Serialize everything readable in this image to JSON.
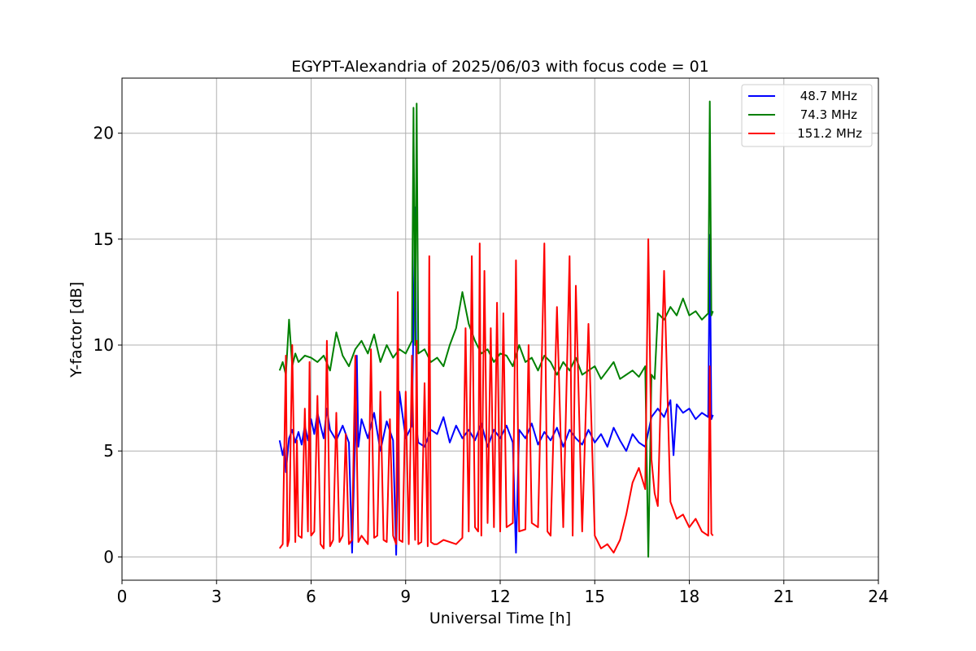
{
  "chart_data": {
    "type": "line",
    "title": "EGYPT-Alexandria of 2025/06/03 with focus code = 01",
    "xlabel": "Universal Time [h]",
    "ylabel": "Y-factor [dB]",
    "xlim": [
      0,
      24
    ],
    "ylim": [
      -1.1,
      22.6
    ],
    "xticks": [
      0,
      3,
      6,
      9,
      12,
      15,
      18,
      21,
      24
    ],
    "yticks": [
      0,
      5,
      10,
      15,
      20
    ],
    "grid": true,
    "legend_position": "top-right",
    "series": [
      {
        "name": "48.7 MHz",
        "color": "#0000ff",
        "x": [
          5.0,
          5.1,
          5.15,
          5.2,
          5.3,
          5.4,
          5.5,
          5.6,
          5.7,
          5.8,
          5.9,
          6.0,
          6.1,
          6.2,
          6.3,
          6.4,
          6.5,
          6.6,
          6.8,
          7.0,
          7.2,
          7.3,
          7.4,
          7.45,
          7.5,
          7.6,
          7.8,
          8.0,
          8.2,
          8.4,
          8.6,
          8.7,
          8.8,
          9.0,
          9.2,
          9.3,
          9.35,
          9.4,
          9.6,
          9.8,
          10.0,
          10.2,
          10.4,
          10.6,
          10.8,
          11.0,
          11.2,
          11.4,
          11.6,
          11.8,
          12.0,
          12.2,
          12.4,
          12.5,
          12.6,
          12.8,
          13.0,
          13.2,
          13.4,
          13.6,
          13.8,
          14.0,
          14.2,
          14.4,
          14.6,
          14.8,
          15.0,
          15.2,
          15.4,
          15.6,
          15.8,
          16.0,
          16.2,
          16.4,
          16.6,
          16.8,
          17.0,
          17.2,
          17.4,
          17.5,
          17.6,
          17.8,
          18.0,
          18.2,
          18.4,
          18.6,
          18.65,
          18.7,
          18.75
        ],
        "y": [
          5.5,
          4.8,
          5.2,
          4.0,
          5.6,
          6.0,
          5.4,
          5.9,
          5.3,
          6.2,
          5.5,
          6.5,
          5.8,
          6.8,
          6.2,
          5.6,
          7.0,
          6.0,
          5.5,
          6.2,
          5.4,
          0.2,
          6.0,
          9.5,
          5.2,
          6.5,
          5.6,
          6.8,
          5.0,
          6.4,
          5.5,
          0.1,
          7.8,
          5.6,
          6.2,
          16.5,
          6.0,
          5.4,
          5.2,
          6.0,
          5.8,
          6.6,
          5.4,
          6.2,
          5.6,
          6.0,
          5.5,
          6.3,
          5.2,
          6.0,
          5.6,
          6.2,
          5.4,
          0.2,
          6.0,
          5.6,
          6.3,
          5.3,
          5.9,
          5.5,
          6.1,
          5.2,
          6.0,
          5.6,
          5.3,
          6.0,
          5.4,
          5.8,
          5.2,
          6.1,
          5.5,
          5.0,
          5.8,
          5.4,
          5.2,
          6.6,
          7.0,
          6.6,
          7.4,
          4.8,
          7.2,
          6.8,
          7.0,
          6.5,
          6.8,
          6.6,
          15.2,
          6.5,
          6.7
        ]
      },
      {
        "name": "74.3 MHz",
        "color": "#008000",
        "x": [
          5.0,
          5.1,
          5.2,
          5.3,
          5.4,
          5.5,
          5.6,
          5.8,
          6.0,
          6.2,
          6.4,
          6.6,
          6.8,
          7.0,
          7.2,
          7.4,
          7.6,
          7.8,
          8.0,
          8.2,
          8.4,
          8.6,
          8.8,
          9.0,
          9.2,
          9.25,
          9.3,
          9.35,
          9.4,
          9.6,
          9.8,
          10.0,
          10.2,
          10.4,
          10.6,
          10.8,
          11.0,
          11.2,
          11.4,
          11.6,
          11.8,
          12.0,
          12.2,
          12.4,
          12.6,
          12.8,
          13.0,
          13.2,
          13.4,
          13.6,
          13.8,
          14.0,
          14.2,
          14.4,
          14.6,
          14.8,
          15.0,
          15.2,
          15.4,
          15.6,
          15.8,
          16.0,
          16.2,
          16.4,
          16.6,
          16.7,
          16.8,
          16.9,
          17.0,
          17.2,
          17.4,
          17.6,
          17.8,
          18.0,
          18.2,
          18.4,
          18.6,
          18.65,
          18.7,
          18.75
        ],
        "y": [
          8.8,
          9.2,
          8.6,
          11.2,
          9.0,
          9.6,
          9.2,
          9.5,
          9.4,
          9.2,
          9.5,
          8.8,
          10.6,
          9.5,
          9.0,
          9.8,
          10.2,
          9.6,
          10.5,
          9.2,
          10.0,
          9.4,
          9.8,
          9.6,
          10.2,
          21.2,
          10.0,
          21.4,
          9.6,
          9.8,
          9.2,
          9.4,
          9.0,
          10.0,
          10.8,
          12.5,
          11.0,
          10.2,
          9.6,
          9.8,
          9.2,
          9.6,
          9.5,
          9.0,
          10.0,
          9.2,
          9.4,
          8.8,
          9.5,
          9.2,
          8.6,
          9.2,
          8.8,
          9.4,
          8.6,
          8.8,
          9.0,
          8.4,
          8.8,
          9.2,
          8.4,
          8.6,
          8.8,
          8.5,
          9.0,
          0.0,
          8.6,
          8.4,
          11.5,
          11.2,
          11.8,
          11.4,
          12.2,
          11.4,
          11.6,
          11.2,
          11.5,
          21.5,
          11.4,
          11.6
        ]
      },
      {
        "name": "151.2 MHz",
        "color": "#ff0000",
        "x": [
          5.0,
          5.1,
          5.2,
          5.25,
          5.3,
          5.4,
          5.5,
          5.55,
          5.6,
          5.7,
          5.8,
          5.9,
          5.95,
          6.0,
          6.1,
          6.2,
          6.3,
          6.4,
          6.5,
          6.6,
          6.7,
          6.8,
          6.9,
          7.0,
          7.1,
          7.2,
          7.3,
          7.4,
          7.5,
          7.6,
          7.7,
          7.8,
          7.9,
          8.0,
          8.1,
          8.2,
          8.3,
          8.4,
          8.5,
          8.6,
          8.7,
          8.75,
          8.8,
          8.9,
          9.0,
          9.1,
          9.2,
          9.3,
          9.35,
          9.4,
          9.5,
          9.6,
          9.7,
          9.75,
          9.8,
          9.9,
          10.0,
          10.2,
          10.4,
          10.6,
          10.8,
          10.9,
          11.0,
          11.1,
          11.2,
          11.3,
          11.35,
          11.4,
          11.5,
          11.6,
          11.7,
          11.8,
          11.9,
          12.0,
          12.1,
          12.2,
          12.4,
          12.5,
          12.6,
          12.8,
          12.9,
          13.0,
          13.2,
          13.4,
          13.5,
          13.6,
          13.8,
          14.0,
          14.2,
          14.3,
          14.4,
          14.6,
          14.8,
          15.0,
          15.2,
          15.4,
          15.6,
          15.8,
          16.0,
          16.2,
          16.4,
          16.6,
          16.7,
          16.8,
          16.9,
          17.0,
          17.2,
          17.4,
          17.6,
          17.8,
          18.0,
          18.2,
          18.4,
          18.6,
          18.65,
          18.7,
          18.75
        ],
        "y": [
          0.4,
          0.6,
          9.5,
          0.5,
          0.8,
          10.0,
          0.7,
          5.5,
          1.0,
          0.9,
          7.0,
          1.2,
          9.2,
          1.0,
          1.2,
          7.6,
          0.6,
          0.4,
          10.2,
          0.5,
          0.8,
          6.8,
          0.7,
          1.0,
          5.8,
          0.6,
          0.8,
          9.5,
          0.7,
          1.0,
          0.8,
          0.6,
          9.8,
          0.9,
          1.0,
          7.8,
          0.8,
          0.7,
          6.5,
          1.0,
          0.6,
          12.5,
          0.8,
          0.7,
          7.8,
          0.6,
          9.5,
          0.8,
          10.2,
          0.6,
          0.7,
          8.2,
          0.5,
          14.2,
          0.7,
          0.6,
          0.6,
          0.8,
          0.7,
          0.6,
          0.9,
          10.8,
          1.2,
          14.2,
          1.4,
          1.2,
          14.8,
          1.0,
          13.5,
          1.6,
          10.8,
          1.4,
          12.0,
          1.2,
          11.5,
          1.4,
          1.6,
          14.0,
          1.2,
          1.3,
          10.0,
          1.6,
          1.4,
          14.8,
          1.2,
          1.0,
          11.8,
          1.4,
          14.2,
          1.0,
          12.8,
          1.2,
          11.0,
          1.0,
          0.4,
          0.6,
          0.2,
          0.8,
          2.0,
          3.5,
          4.2,
          3.2,
          15.0,
          4.6,
          3.0,
          2.4,
          13.5,
          2.6,
          1.8,
          2.0,
          1.4,
          1.8,
          1.2,
          1.0,
          9.0,
          1.1,
          1.0
        ]
      }
    ]
  }
}
